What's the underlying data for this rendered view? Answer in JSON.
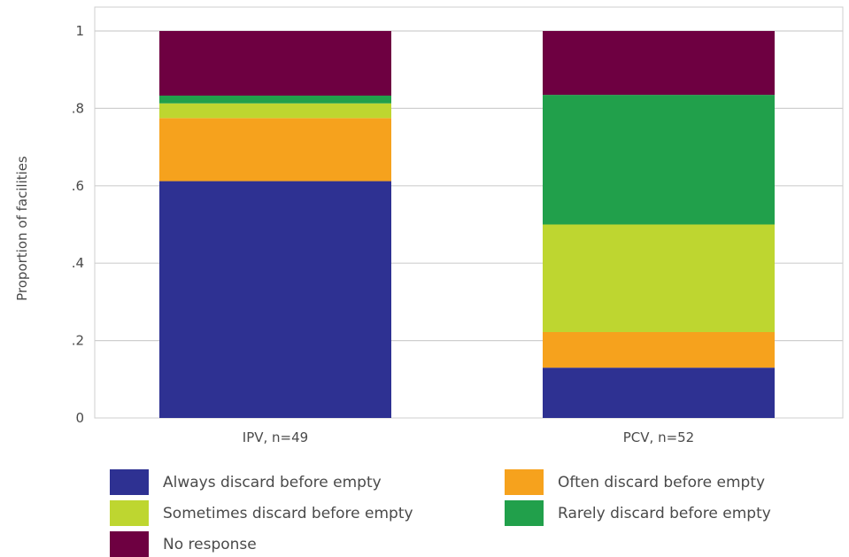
{
  "chart_data": {
    "type": "bar",
    "stacked": true,
    "categories": [
      "IPV, n=49",
      "PCV, n=52"
    ],
    "ylabel": "Proportion of facilities",
    "ylim": [
      0,
      1
    ],
    "yticks": [
      {
        "value": 0,
        "label": "0"
      },
      {
        "value": 0.2,
        "label": ".2"
      },
      {
        "value": 0.4,
        "label": ".4"
      },
      {
        "value": 0.6,
        "label": ".6"
      },
      {
        "value": 0.8,
        "label": ".8"
      },
      {
        "value": 1,
        "label": "1"
      }
    ],
    "grid": true,
    "legend_position": "bottom",
    "series": [
      {
        "name": "Always discard before empty",
        "color": "#2e3192",
        "values": [
          0.612,
          0.13
        ]
      },
      {
        "name": "Often discard before empty",
        "color": "#f6a21d",
        "values": [
          0.163,
          0.092
        ]
      },
      {
        "name": "Sometimes discard before empty",
        "color": "#bed630",
        "values": [
          0.038,
          0.278
        ]
      },
      {
        "name": "Rarely discard before empty",
        "color": "#21a04b",
        "values": [
          0.02,
          0.335
        ]
      },
      {
        "name": "No response",
        "color": "#6e0041",
        "values": [
          0.167,
          0.165
        ]
      }
    ]
  }
}
